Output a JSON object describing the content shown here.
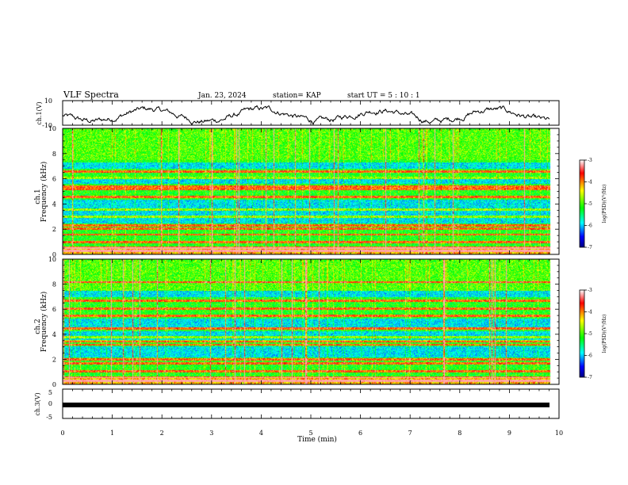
{
  "header": {
    "title": "VLF Spectra",
    "date": "Jan. 23, 2024",
    "station": "station= KAP",
    "start": "start  UT =  5 : 10 : 1"
  },
  "chart_data": [
    {
      "type": "line",
      "name": "ch1-voltage",
      "ylabel": "ch.1(V)",
      "xlim": [
        0,
        10
      ],
      "ylim": [
        -10,
        10
      ],
      "yticks": [
        "10",
        "-10"
      ],
      "description_values": {
        "mean": -2,
        "amplitude": 4
      }
    },
    {
      "type": "heatmap",
      "name": "ch1-spectrogram",
      "ylabel_channel": "ch.1",
      "ylabel": "Frequency (kHz)",
      "xlim": [
        0,
        10
      ],
      "ylim": [
        0,
        10
      ],
      "yticks": [
        "0",
        "2",
        "4",
        "6",
        "8",
        "10"
      ],
      "colorbar": {
        "label": "log(PSD)(V²/Hz)",
        "range": [
          -7,
          -3
        ],
        "ticks": [
          "-3",
          "-4",
          "-5",
          "-6",
          "-7"
        ]
      }
    },
    {
      "type": "heatmap",
      "name": "ch2-spectrogram",
      "ylabel_channel": "ch.2",
      "ylabel": "Frequency (kHz)",
      "xlim": [
        0,
        10
      ],
      "ylim": [
        0,
        10
      ],
      "yticks": [
        "0",
        "2",
        "4",
        "6",
        "8",
        "10"
      ],
      "colorbar": {
        "label": "log(PSD)(V²/Hz)",
        "range": [
          -7,
          -3
        ],
        "ticks": [
          "-3",
          "-4",
          "-5",
          "-6",
          "-7"
        ]
      }
    },
    {
      "type": "line",
      "name": "ch3-voltage",
      "ylabel": "ch.3(V)",
      "xlim": [
        0,
        10
      ],
      "ylim": [
        -5,
        5
      ],
      "yticks": [
        "5",
        "0",
        "-5"
      ],
      "values_constant": -1.2
    }
  ],
  "xaxis": {
    "label": "Time  (min)",
    "ticks": [
      "0",
      "1",
      "2",
      "3",
      "4",
      "5",
      "6",
      "7",
      "8",
      "9",
      "10"
    ]
  }
}
